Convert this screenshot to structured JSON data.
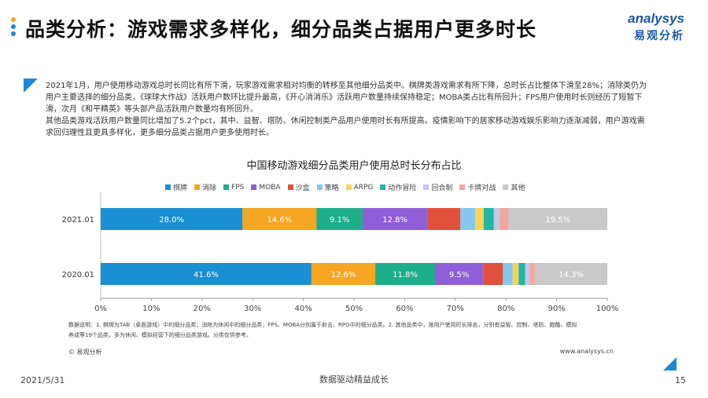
{
  "header": {
    "title": "品类分析：游戏需求多样化，细分品类占据用户更多时长",
    "logo_en": "analysys",
    "logo_cn": "易观分析"
  },
  "description": {
    "p1": "2021年1月，用户使用移动游戏总时长同比有所下滑，玩家游戏需求相对均衡的转移至其他细分品类中。棋牌类游戏需求有所下降，总时长占比整体下滑至28%；消除类仍为用户主要选择的细分品类，《球球大作战》活跃用户数环比提升最高，《开心消消乐》活跃用户数量持续保持稳定；MOBA类占比有所回升；FPS用户使用时长则经历了短暂下滑，次月《和平精英》等头部产品活跃用户数量均有所回升。",
    "p2": "其他品类游戏活跃用户数量同比增加了5.2个pct，其中、益智、塔防、休闲控制类产品用户使用时长有所提高。疫情影响下的居家移动游戏娱乐影响力逐渐减弱，用户游戏需求回归理性且更具多样化，更多细分品类占据用户更多使用时长。"
  },
  "chart_data": {
    "type": "bar",
    "orientation": "horizontal",
    "stacked": true,
    "title": "中国移动游戏细分品类用户使用总时长分布占比",
    "categories": [
      "2021.01",
      "2020.01"
    ],
    "series": [
      {
        "name": "棋牌",
        "color": "#1a8fd1",
        "values": [
          28.0,
          41.6
        ],
        "label_values": [
          "28.0%",
          "41.6%"
        ]
      },
      {
        "name": "消除",
        "color": "#f5a623",
        "values": [
          14.6,
          12.6
        ],
        "label_values": [
          "14.6%",
          "12.6%"
        ]
      },
      {
        "name": "FPS",
        "color": "#1dae8a",
        "values": [
          9.1,
          11.8
        ],
        "label_values": [
          "9.1%",
          "11.8%"
        ]
      },
      {
        "name": "MOBA",
        "color": "#8e5fd6",
        "values": [
          12.8,
          9.5
        ],
        "label_values": [
          "12.8%",
          "9.5%"
        ]
      },
      {
        "name": "沙盒",
        "color": "#e0503a",
        "values": [
          6.5,
          3.9
        ],
        "label_values": [
          "",
          ""
        ]
      },
      {
        "name": "策略",
        "color": "#84c8f0",
        "values": [
          2.9,
          1.9
        ],
        "label_values": [
          "",
          ""
        ]
      },
      {
        "name": "ARPG",
        "color": "#f7d358",
        "values": [
          1.7,
          1.2
        ],
        "label_values": [
          "",
          ""
        ]
      },
      {
        "name": "动作冒险",
        "color": "#22b5a6",
        "values": [
          2.0,
          1.3
        ],
        "label_values": [
          "",
          ""
        ]
      },
      {
        "name": "回合制",
        "color": "#bfc9e8",
        "values": [
          1.2,
          0.9
        ],
        "label_values": [
          "",
          ""
        ]
      },
      {
        "name": "卡牌对战",
        "color": "#f4a6a0",
        "values": [
          1.7,
          1.0
        ],
        "label_values": [
          "",
          ""
        ]
      },
      {
        "name": "其他",
        "color": "#c9c9c9",
        "values": [
          19.5,
          14.3
        ],
        "label_values": [
          "19.5%",
          "14.3%"
        ]
      }
    ],
    "x_ticks": [
      "0%",
      "10%",
      "20%",
      "30%",
      "40%",
      "50%",
      "60%",
      "70%",
      "80%",
      "90%",
      "100%"
    ],
    "xlim": [
      0,
      100
    ],
    "legend": "top"
  },
  "note": {
    "line1": "数据说明：1. 棋牌为TAB（桌面游戏）中的细分品类；消除为休闲中的细分品类；FPS、MOBA分别属于射击、RPG中的细分品类。2. 其他品类中，按用户使用时长排名，分别有益智、控制、塔防、跑酷、模拟",
    "line2": "养成等19个品类，多为休闲、模拟经营下的细分品类游戏。分类仅供参考。"
  },
  "source": {
    "left": "© 易观分析",
    "right": "www.analysys.cn"
  },
  "footer": {
    "date": "2021/5/31",
    "tagline": "数据驱动精益成长",
    "page": "15"
  }
}
